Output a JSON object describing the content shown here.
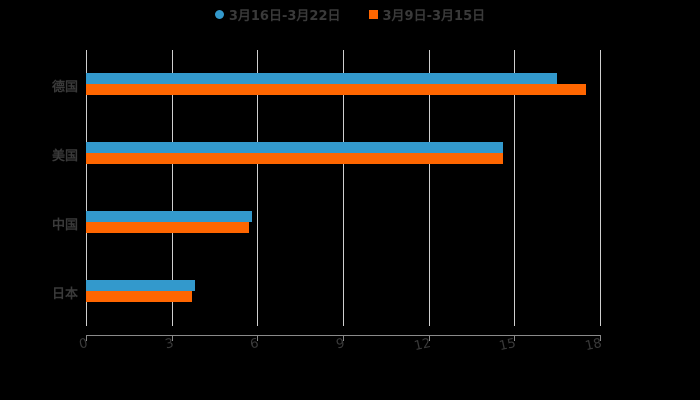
{
  "chart_data": {
    "type": "bar",
    "orientation": "horizontal",
    "title": "",
    "xlabel": "",
    "ylabel": "",
    "categories": [
      "德国",
      "美国",
      "中国",
      "日本"
    ],
    "series": [
      {
        "name": "3月16日-3月22日",
        "color": "#3399cc",
        "marker": "circle",
        "values": [
          16.5,
          14.6,
          5.8,
          3.8
        ]
      },
      {
        "name": "3月9日-3月15日",
        "color": "#ff6600",
        "marker": "square",
        "values": [
          17.5,
          14.6,
          5.7,
          3.7
        ]
      }
    ],
    "xlim": [
      0,
      18
    ],
    "x_ticks": [
      "0",
      "3",
      "6",
      "9",
      "12",
      "15",
      "18"
    ],
    "grid": "vertical",
    "legend_position": "top"
  },
  "colors": {
    "background": "#000000",
    "text": "#3a3a3a",
    "grid": "#cfcfcf",
    "series1": "#3399cc",
    "series2": "#ff6600"
  }
}
